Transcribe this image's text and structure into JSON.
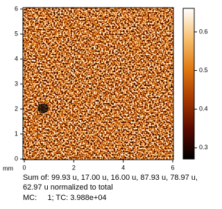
{
  "chart_data": {
    "type": "heatmap",
    "xlim": [
      0,
      6
    ],
    "xticks": [
      0,
      2,
      4,
      6
    ],
    "ylim": [
      0,
      6
    ],
    "yticks": [
      0,
      1,
      2,
      3,
      4,
      5,
      6
    ],
    "x_label": "mm",
    "colormap": [
      "#000000",
      "#5a0a00",
      "#a83a00",
      "#e07a10",
      "#f6c070",
      "#ffffff"
    ],
    "colorbar": {
      "lim": [
        0.271,
        0.661
      ],
      "ticks": [
        0.3,
        0.4,
        0.5,
        0.6
      ]
    },
    "caption": [
      "Sum of: 99.93 u, 17.00 u, 16.00 u, 87.93 u, 78.97 u,",
      "62.97 u normalized to total",
      "MC:     1; TC: 3.988e+04"
    ]
  }
}
